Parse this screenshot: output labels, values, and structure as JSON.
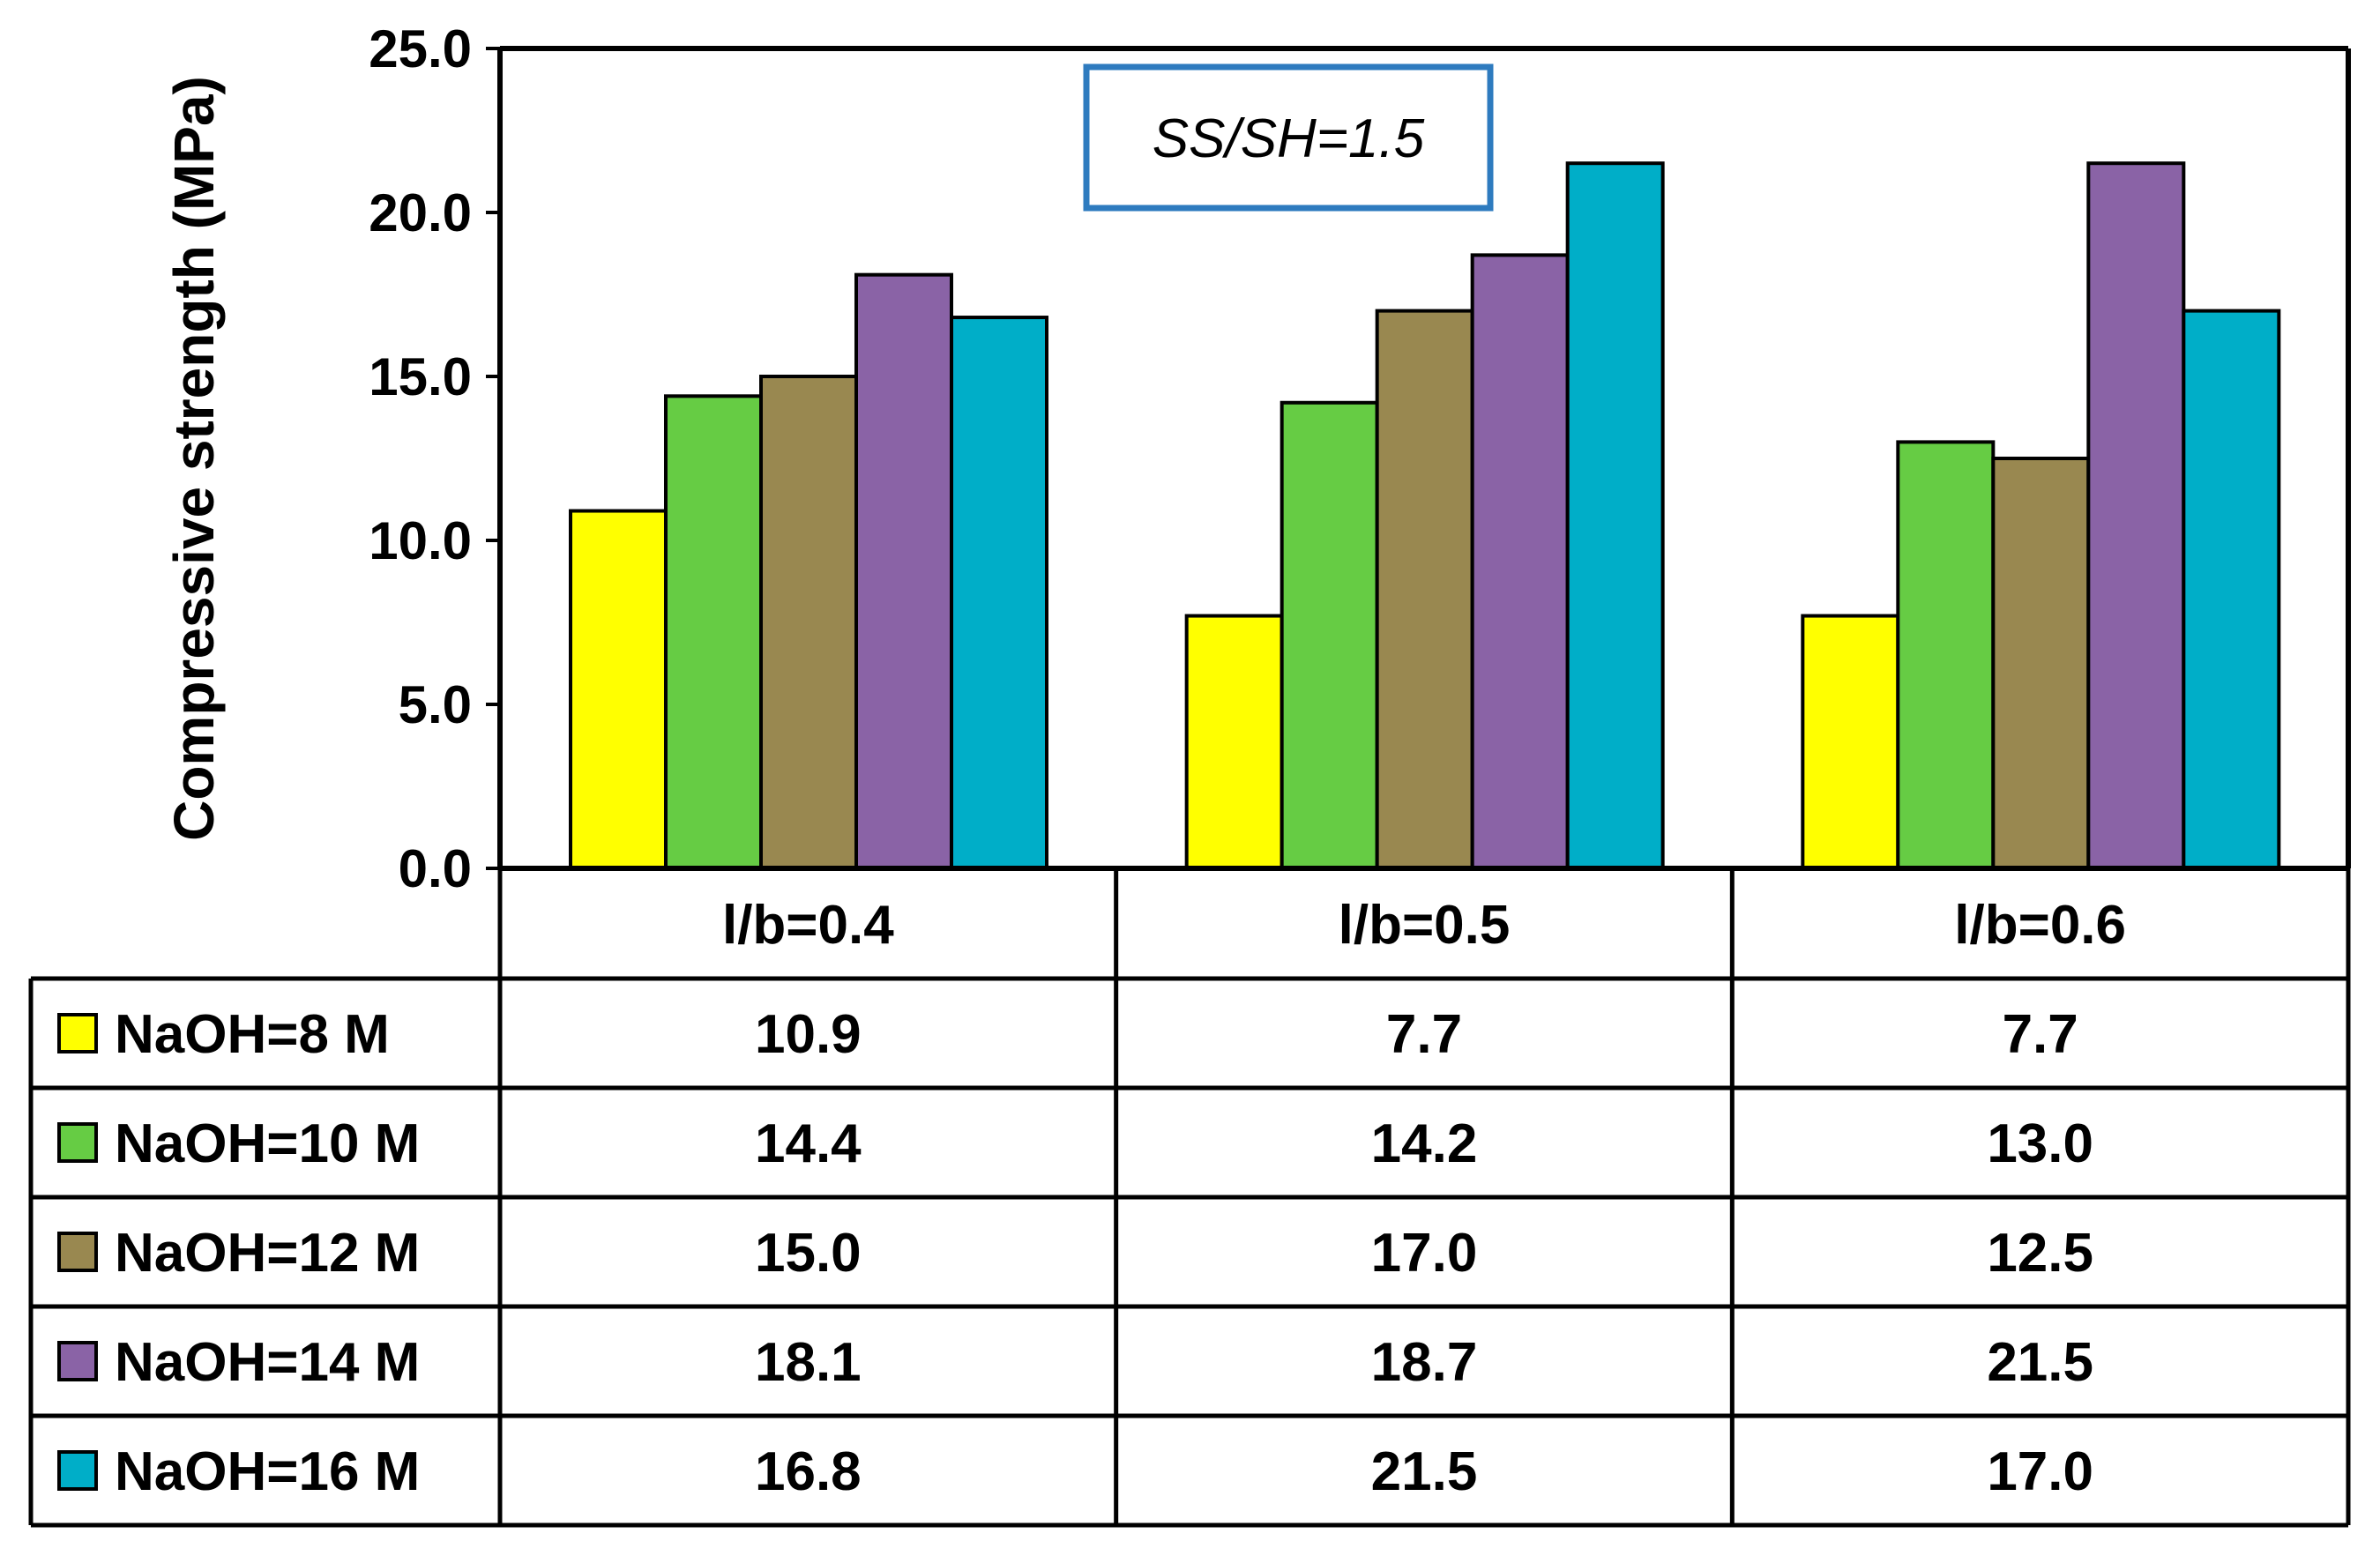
{
  "chart_data": {
    "type": "bar",
    "annotation": "SS/SH=1.5",
    "ylabel": "Compressive strength (MPa)",
    "xlabel": "",
    "ylim": [
      0,
      25
    ],
    "yticks": [
      "0.0",
      "5.0",
      "10.0",
      "15.0",
      "20.0",
      "25.0"
    ],
    "ytick_values": [
      0,
      5,
      10,
      15,
      20,
      25
    ],
    "categories": [
      "l/b=0.4",
      "l/b=0.5",
      "l/b=0.6"
    ],
    "series": [
      {
        "name": "NaOH=8 M",
        "color": "#FFFF00",
        "values": [
          10.9,
          7.7,
          7.7
        ],
        "labels": [
          "10.9",
          "7.7",
          "7.7"
        ]
      },
      {
        "name": "NaOH=10 M",
        "color": "#66CC44",
        "values": [
          14.4,
          14.2,
          13.0
        ],
        "labels": [
          "14.4",
          "14.2",
          "13.0"
        ]
      },
      {
        "name": "NaOH=12 M",
        "color": "#998850",
        "values": [
          15.0,
          17.0,
          12.5
        ],
        "labels": [
          "15.0",
          "17.0",
          "12.5"
        ]
      },
      {
        "name": "NaOH=14 M",
        "color": "#8A63A6",
        "values": [
          18.1,
          18.7,
          21.5
        ],
        "labels": [
          "18.1",
          "18.7",
          "21.5"
        ]
      },
      {
        "name": "NaOH=16 M",
        "color": "#00AEC8",
        "values": [
          16.8,
          21.5,
          17.0
        ],
        "labels": [
          "16.8",
          "21.5",
          "17.0"
        ]
      }
    ]
  },
  "colors": {
    "annotation_border": "#2E7BBF",
    "axis": "#000000"
  }
}
